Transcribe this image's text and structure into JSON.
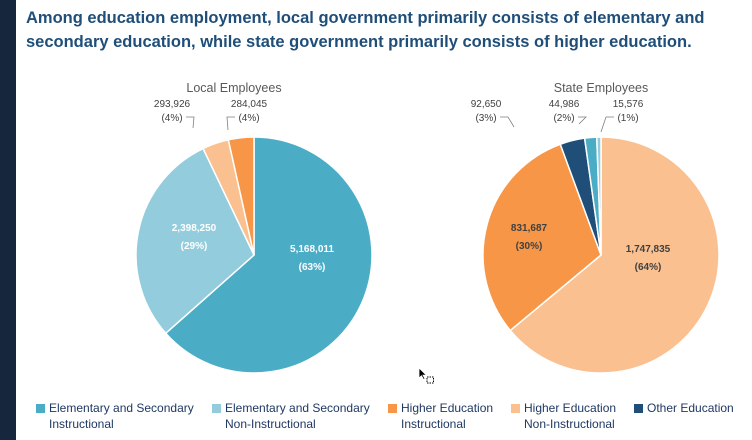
{
  "headline": {
    "line1": "Among education employment, local government primarily consists of elementary and",
    "line2": "secondary education, while state government primarily consists of higher education."
  },
  "legend": [
    {
      "line1": "Elementary and Secondary",
      "line2": "Instructional",
      "color": "#4bacc6"
    },
    {
      "line1": "Elementary and Secondary",
      "line2": "Non-Instructional",
      "color": "#93cddd"
    },
    {
      "line1": "Higher Education",
      "line2": "Instructional",
      "color": "#f79646"
    },
    {
      "line1": "Higher Education",
      "line2": "Non-Instructional",
      "color": "#fac090"
    },
    {
      "line1": "Other Education",
      "line2": "",
      "color": "#1f4e79"
    }
  ],
  "chart_data": [
    {
      "type": "pie",
      "title": "Local Employees",
      "slices": [
        {
          "category": "Elementary and Secondary Instructional",
          "value": 5168011,
          "value_label": "5,168,011",
          "percent_label": "(63%)",
          "color": "#4bacc6"
        },
        {
          "category": "Elementary and Secondary Non-Instructional",
          "value": 2398250,
          "value_label": "2,398,250",
          "percent_label": "(29%)",
          "color": "#93cddd"
        },
        {
          "category": "Higher Education Non-Instructional",
          "value": 293926,
          "value_label": "293,926",
          "percent_label": "(4%)",
          "color": "#fac090"
        },
        {
          "category": "Higher Education Instructional",
          "value": 284045,
          "value_label": "284,045",
          "percent_label": "(4%)",
          "color": "#f79646"
        }
      ]
    },
    {
      "type": "pie",
      "title": "State Employees",
      "slices": [
        {
          "category": "Higher Education Non-Instructional",
          "value": 1747835,
          "value_label": "1,747,835",
          "percent_label": "(64%)",
          "color": "#fac090"
        },
        {
          "category": "Higher Education Instructional",
          "value": 831687,
          "value_label": "831,687",
          "percent_label": "(30%)",
          "color": "#f79646"
        },
        {
          "category": "Other Education",
          "value": 92650,
          "value_label": "92,650",
          "percent_label": "(3%)",
          "color": "#1f4e79"
        },
        {
          "category": "Elementary and Secondary Instructional",
          "value": 44986,
          "value_label": "44,986",
          "percent_label": "(2%)",
          "color": "#4bacc6"
        },
        {
          "category": "Elementary and Secondary Non-Instructional",
          "value": 15576,
          "value_label": "15,576",
          "percent_label": "(1%)",
          "color": "#93cddd"
        }
      ]
    }
  ]
}
